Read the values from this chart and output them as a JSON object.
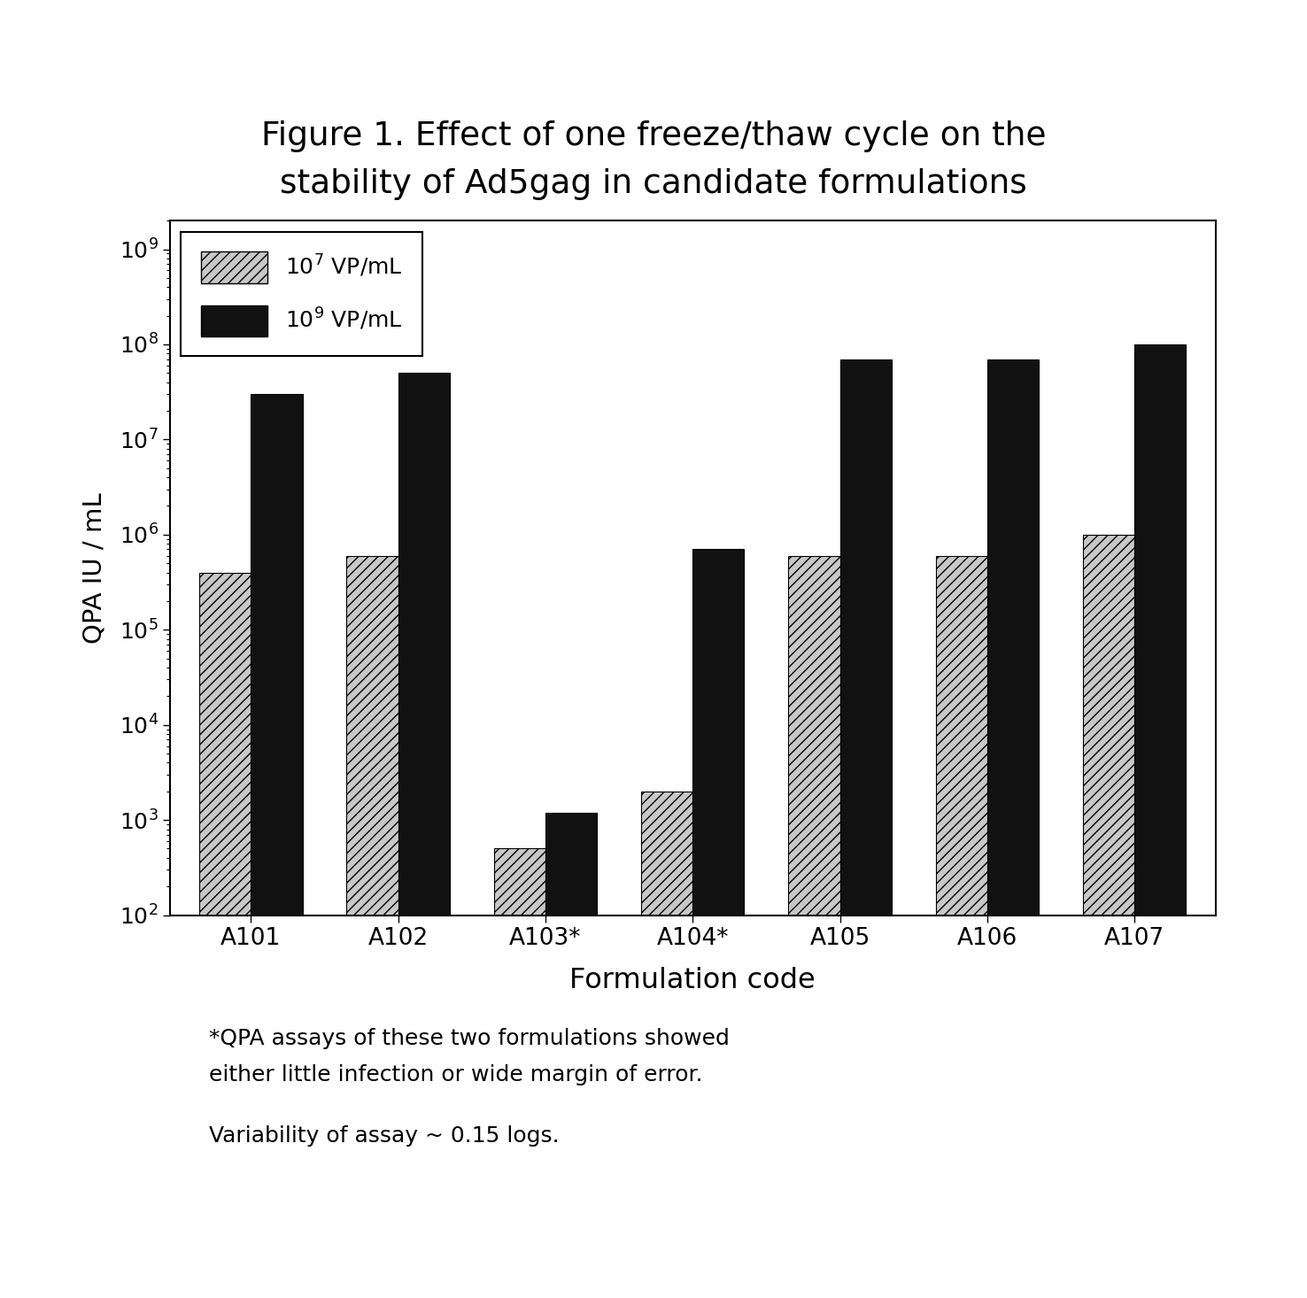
{
  "title_line1": "Figure 1. Effect of one freeze/thaw cycle on the",
  "title_line2": "stability of Ad5gag in candidate formulations",
  "categories": [
    "A101",
    "A102",
    "A103*",
    "A104*",
    "A105",
    "A106",
    "A107"
  ],
  "values_low": [
    400000.0,
    600000.0,
    500.0,
    2000.0,
    600000.0,
    600000.0,
    1000000.0
  ],
  "values_high": [
    30000000.0,
    50000000.0,
    1200.0,
    700000.0,
    70000000.0,
    70000000.0,
    100000000.0
  ],
  "ylabel": "QPA IU / mL",
  "xlabel": "Formulation code",
  "ylim_low": 100.0,
  "ylim_high": 2000000000.0,
  "legend_label_low": "$10^7$ VP/mL",
  "legend_label_high": "$10^9$ VP/mL",
  "bar_color_low": "#c8c8c8",
  "bar_color_high": "#111111",
  "footnote1": "*QPA assays of these two formulations showed",
  "footnote2": "either little infection or wide margin of error.",
  "footnote3": "Variability of assay ~ 0.15 logs.",
  "background_color": "#ffffff",
  "bar_width": 0.35
}
